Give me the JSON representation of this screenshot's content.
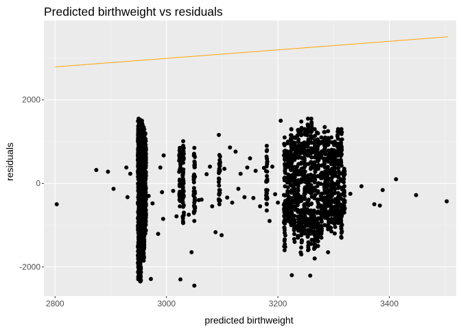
{
  "chart_data": {
    "type": "scatter",
    "title": "Predicted birthweight vs residuals",
    "xlabel": "predicted birthweight",
    "ylabel": "residuals",
    "xlim": [
      2780,
      3520
    ],
    "ylim": [
      -2700,
      3900
    ],
    "x_ticks": [
      2800,
      3000,
      3200,
      3400
    ],
    "x_tick_labels": [
      "2800",
      "3000",
      "3200",
      "3400"
    ],
    "y_ticks": [
      -2000,
      0,
      2000
    ],
    "y_tick_labels": [
      "-2000",
      "0",
      "2000"
    ],
    "grid": true,
    "background": "#ebebeb",
    "point_color": "#000000",
    "reference_line": {
      "color": "#ffa500",
      "x": [
        2800,
        3505
      ],
      "y": [
        2790,
        3510
      ]
    },
    "points": [
      [
        2803,
        -500
      ],
      [
        2874,
        320
      ],
      [
        2895,
        280
      ],
      [
        2905,
        -130
      ],
      [
        2928,
        380
      ],
      [
        2930,
        -330
      ],
      [
        2935,
        230
      ],
      [
        2968,
        -300
      ],
      [
        2972,
        -2290
      ],
      [
        2975,
        -480
      ],
      [
        2985,
        -1210
      ],
      [
        2989,
        380
      ],
      [
        2992,
        -210
      ],
      [
        2994,
        -850
      ],
      [
        2995,
        670
      ],
      [
        3012,
        -180
      ],
      [
        3018,
        -790
      ],
      [
        3025,
        -2300
      ],
      [
        3030,
        1010
      ],
      [
        3040,
        -750
      ],
      [
        3045,
        -1650
      ],
      [
        3050,
        -2450
      ],
      [
        3058,
        -400
      ],
      [
        3063,
        -390
      ],
      [
        3072,
        220
      ],
      [
        3078,
        400
      ],
      [
        3082,
        -550
      ],
      [
        3088,
        -1170
      ],
      [
        3094,
        1160
      ],
      [
        3099,
        -1240
      ],
      [
        3104,
        350
      ],
      [
        3109,
        -340
      ],
      [
        3114,
        860
      ],
      [
        3118,
        -460
      ],
      [
        3124,
        760
      ],
      [
        3129,
        -130
      ],
      [
        3133,
        230
      ],
      [
        3140,
        -330
      ],
      [
        3145,
        380
      ],
      [
        3150,
        600
      ],
      [
        3156,
        -350
      ],
      [
        3160,
        300
      ],
      [
        3168,
        -550
      ],
      [
        3175,
        370
      ],
      [
        3180,
        -650
      ],
      [
        3185,
        -900
      ],
      [
        3190,
        400
      ],
      [
        3195,
        -260
      ],
      [
        3200,
        -460
      ],
      [
        3205,
        1500
      ],
      [
        3225,
        -2200
      ],
      [
        3237,
        1280
      ],
      [
        3258,
        -2210
      ],
      [
        3270,
        1220
      ],
      [
        3290,
        -1650
      ],
      [
        3312,
        1220
      ],
      [
        3330,
        -250
      ],
      [
        3350,
        -70
      ],
      [
        3373,
        -500
      ],
      [
        3383,
        -530
      ],
      [
        3388,
        -160
      ],
      [
        3412,
        100
      ],
      [
        3448,
        -280
      ],
      [
        3503,
        -430
      ]
    ],
    "columns": [
      {
        "x": 2950,
        "lo": -2300,
        "hi": 1550,
        "n": 260
      },
      {
        "x": 2953,
        "lo": -2350,
        "hi": 1520,
        "n": 240
      },
      {
        "x": 2956,
        "lo": -1750,
        "hi": 1500,
        "n": 230
      },
      {
        "x": 2959,
        "lo": -1850,
        "hi": 1350,
        "n": 200
      },
      {
        "x": 2962,
        "lo": -1200,
        "hi": 1200,
        "n": 150
      },
      {
        "x": 3024,
        "lo": -550,
        "hi": 850,
        "n": 40
      },
      {
        "x": 3030,
        "lo": -950,
        "hi": 900,
        "n": 45
      },
      {
        "x": 3050,
        "lo": -900,
        "hi": 850,
        "n": 40
      },
      {
        "x": 3095,
        "lo": -500,
        "hi": 680,
        "n": 30
      },
      {
        "x": 3180,
        "lo": -500,
        "hi": 900,
        "n": 30
      },
      {
        "x": 3212,
        "lo": -1600,
        "hi": 1100,
        "n": 55
      },
      {
        "x": 3218,
        "lo": -900,
        "hi": 1000,
        "n": 55
      },
      {
        "x": 3224,
        "lo": -1000,
        "hi": 1300,
        "n": 60
      },
      {
        "x": 3230,
        "lo": -1400,
        "hi": 1100,
        "n": 60
      },
      {
        "x": 3236,
        "lo": -1300,
        "hi": 1280,
        "n": 60
      },
      {
        "x": 3242,
        "lo": -1700,
        "hi": 1480,
        "n": 60
      },
      {
        "x": 3248,
        "lo": -1200,
        "hi": 1300,
        "n": 60
      },
      {
        "x": 3254,
        "lo": -1600,
        "hi": 1550,
        "n": 60
      },
      {
        "x": 3260,
        "lo": -1450,
        "hi": 1550,
        "n": 60
      },
      {
        "x": 3266,
        "lo": -1800,
        "hi": 1300,
        "n": 60
      },
      {
        "x": 3272,
        "lo": -1500,
        "hi": 1200,
        "n": 60
      },
      {
        "x": 3278,
        "lo": -1300,
        "hi": 1100,
        "n": 60
      },
      {
        "x": 3284,
        "lo": -1000,
        "hi": 1350,
        "n": 60
      },
      {
        "x": 3290,
        "lo": -1100,
        "hi": 1250,
        "n": 55
      },
      {
        "x": 3296,
        "lo": -1150,
        "hi": 1100,
        "n": 55
      },
      {
        "x": 3302,
        "lo": -1200,
        "hi": 1000,
        "n": 55
      },
      {
        "x": 3308,
        "lo": -950,
        "hi": 1300,
        "n": 55
      },
      {
        "x": 3314,
        "lo": -1300,
        "hi": 1300,
        "n": 50
      },
      {
        "x": 3319,
        "lo": -700,
        "hi": 350,
        "n": 30
      }
    ]
  }
}
